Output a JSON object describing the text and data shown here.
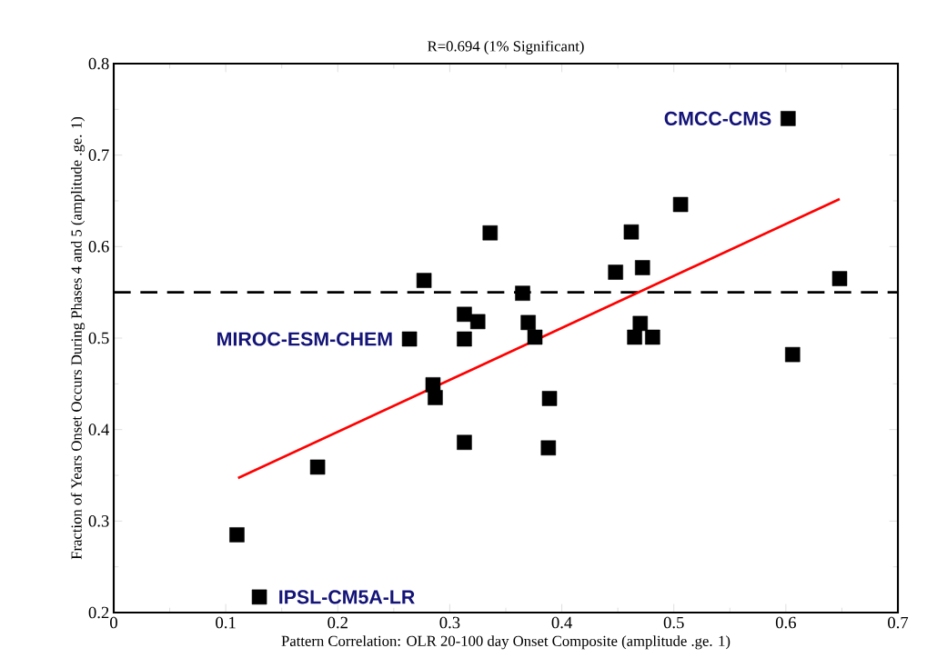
{
  "chart_data": {
    "type": "scatter",
    "title": "R=0.694 (1% Significant)",
    "xlabel": "Pattern Correlation: OLR 20-100 day Onset Composite (amplitude .ge. 1)",
    "ylabel": "Fraction of Years Onset Occurs During Phases 4 and 5 (amplitude .ge. 1)",
    "series": [
      {
        "color": "#000000",
        "marker": "square",
        "x": [
          0.336,
          0.277,
          0.313,
          0.325,
          0.264,
          0.313,
          0.285,
          0.287,
          0.313,
          0.182,
          0.11,
          0.13,
          0.602,
          0.506,
          0.462,
          0.448,
          0.472,
          0.648,
          0.365,
          0.37,
          0.376,
          0.47,
          0.465,
          0.481,
          0.606,
          0.389,
          0.388
        ],
        "values": [
          0.615,
          0.563,
          0.526,
          0.518,
          0.499,
          0.499,
          0.449,
          0.435,
          0.386,
          0.359,
          0.285,
          0.217,
          0.74,
          0.646,
          0.616,
          0.572,
          0.577,
          0.565,
          0.549,
          0.517,
          0.501,
          0.516,
          0.501,
          0.501,
          0.482,
          0.434,
          0.38
        ]
      },
      {
        "type": "line",
        "color": "#ff0000",
        "x": [
          0.111,
          0.648
        ],
        "values": [
          0.347,
          0.652
        ]
      }
    ],
    "ref_lines": [
      {
        "axis": "y",
        "value": 0.55,
        "color": "#000000",
        "line_style": "dashed"
      }
    ],
    "annotations": [
      {
        "text": "CMCC-CMS",
        "x": 0.602,
        "y": 0.74
      },
      {
        "text": "MIROC-ESM-CHEM",
        "x": 0.264,
        "y": 0.499
      },
      {
        "text": "IPSL-CM5A-LR",
        "x": 0.13,
        "y": 0.217
      }
    ],
    "xlim": [
      0,
      0.7
    ],
    "ylim": [
      0.2,
      0.8
    ],
    "xticks": [
      0,
      0.1,
      0.2,
      0.3,
      0.4,
      0.5,
      0.6,
      0.7
    ],
    "yticks": [
      0.2,
      0.3,
      0.4,
      0.5,
      0.6,
      0.7,
      0.8
    ]
  }
}
